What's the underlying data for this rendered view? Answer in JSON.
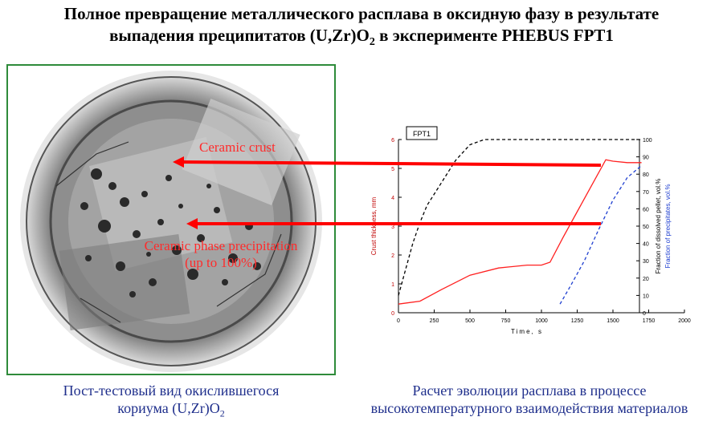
{
  "title": {
    "line1": "Полное превращение металлического расплава в оксидную фазу в результате",
    "line2_prefix": "выпадения преципитатов (U,Zr)O",
    "line2_sub": "2",
    "line2_suffix": " в эксперименте PHEBUS FPT1"
  },
  "photo": {
    "label_crust": "Ceramic crust",
    "label_precip_line1": "Ceramic phase precipitation",
    "label_precip_line2": "(up to 100%)"
  },
  "captions": {
    "left_line1": "Пост-тестовый вид окислившегося",
    "left_line2_prefix": "кориума (U,Zr)O",
    "left_line2_sub": "2",
    "right_line1": "Расчет эволюции расплава в процессе",
    "right_line2": "высокотемпературного взаимодействия материалов"
  },
  "colors": {
    "arrow": "#ff0000",
    "crust": "#ff2020",
    "dissolved": "#000000",
    "precip": "#1f3fd0",
    "frame": "#2e8b3a"
  },
  "chart_data": {
    "type": "line",
    "legend_box": "FPT1",
    "xlabel": "Time, s",
    "ylabel_left": "Crust thickness, mm",
    "ylabel_right_1": "Fraction of dissolved pellet, vol.%",
    "ylabel_right_2": "Fraction of precipitates, vol.%",
    "xlim": [
      0,
      2000
    ],
    "ylim_left": [
      0,
      6
    ],
    "ylim_right": [
      0,
      100
    ],
    "x_ticks": [
      "0",
      "250",
      "500",
      "750",
      "1000",
      "1250",
      "1500",
      "1750",
      "2000"
    ],
    "y_left_ticks": [
      "0",
      "1",
      "2",
      "3",
      "4",
      "5",
      "6"
    ],
    "y_right_ticks": [
      "0",
      "10",
      "20",
      "30",
      "40",
      "50",
      "60",
      "70",
      "80",
      "90",
      "100"
    ],
    "series": [
      {
        "name": "Crust thickness",
        "axis": "left",
        "style": "solid",
        "color": "#ff2020",
        "x": [
          0,
          150,
          300,
          500,
          700,
          900,
          1000,
          1060,
          1150,
          1250,
          1350,
          1450,
          1500,
          1600,
          1700
        ],
        "y": [
          0.3,
          0.4,
          0.8,
          1.3,
          1.55,
          1.65,
          1.65,
          1.75,
          2.6,
          3.5,
          4.4,
          5.3,
          5.25,
          5.2,
          5.2
        ]
      },
      {
        "name": "Fraction of dissolved pellet",
        "axis": "right",
        "style": "dashed",
        "color": "#000000",
        "x": [
          0,
          50,
          100,
          150,
          200,
          300,
          400,
          500,
          600,
          700,
          1700
        ],
        "y": [
          10,
          25,
          40,
          52,
          62,
          75,
          88,
          97,
          100,
          100,
          100
        ]
      },
      {
        "name": "Fraction of precipitates",
        "axis": "right",
        "style": "dashed",
        "color": "#1f3fd0",
        "x": [
          1130,
          1200,
          1300,
          1400,
          1500,
          1600,
          1700
        ],
        "y": [
          5,
          15,
          30,
          48,
          65,
          78,
          85
        ]
      }
    ]
  }
}
